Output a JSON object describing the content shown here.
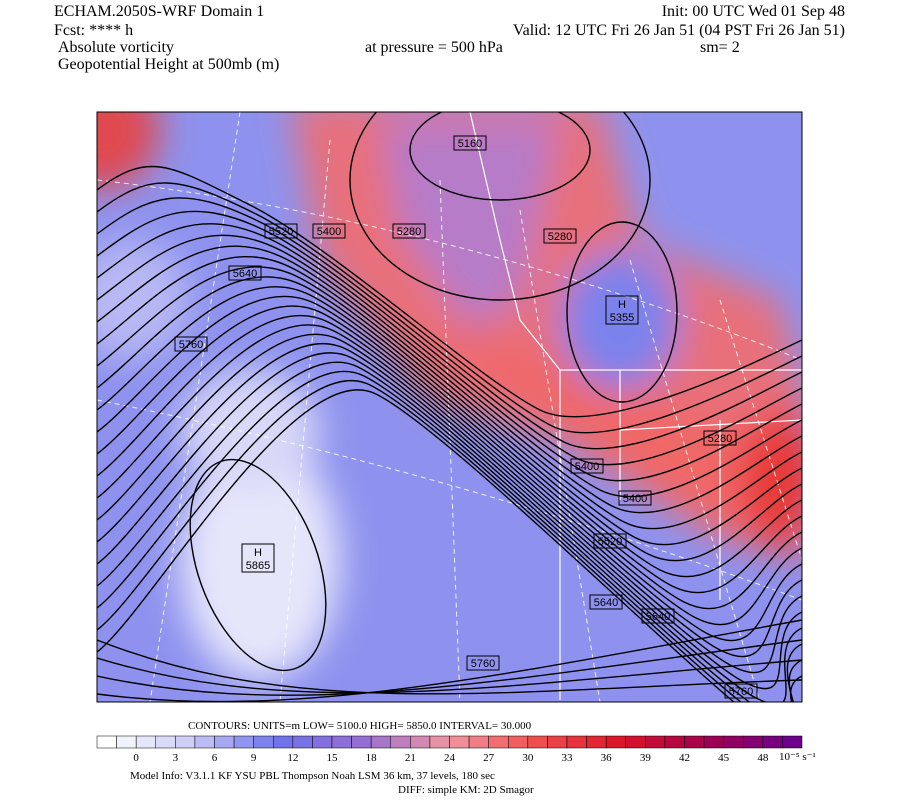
{
  "header": {
    "left": [
      "ECHAM.2050S-WRF Domain 1",
      "Fcst: **** h",
      "Absolute vorticity",
      "Geopotential Height at 500mb (m)"
    ],
    "init": "Init: 00 UTC Wed 01 Sep 48",
    "valid": "Valid: 12 UTC Fri 26 Jan 51 (04 PST Fri 26 Jan 51)",
    "pressure": "at pressure =  500 hPa",
    "smooth": "sm= 2"
  },
  "map": {
    "contour_labels": [
      5160,
      5520,
      5400,
      5280,
      5280,
      5640,
      5760,
      5280,
      5400,
      5400,
      5520,
      5640,
      5640,
      5760,
      5760
    ],
    "highs": [
      {
        "letter": "H",
        "value": 5355
      },
      {
        "letter": "H",
        "value": 5865
      }
    ]
  },
  "colorbar": {
    "contours": "CONTOURS:  UNITS=m  LOW=   5100.0      HIGH=   5850.0      INTERVAL=     30.000",
    "ticks": [
      0,
      3,
      6,
      9,
      12,
      15,
      18,
      21,
      24,
      27,
      30,
      33,
      36,
      39,
      42,
      45,
      48
    ],
    "units": "10⁻⁵ s⁻¹"
  },
  "footer": {
    "model": "Model Info: V3.1.1    KF        YSU PBL   Thompson      Noah LSM   36 km,     37 levels,   180 sec",
    "diff": "DIFF: simple KM: 2D Smagor"
  }
}
